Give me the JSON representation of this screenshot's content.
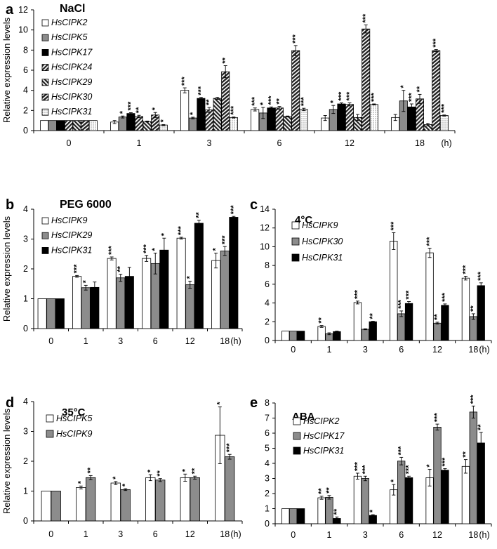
{
  "figure": {
    "ylabel": "Relative expression levels",
    "time_unit": "(h)"
  },
  "chart_data": [
    {
      "type": "bar",
      "panel": "a",
      "title": "NaCl",
      "categories": [
        "0",
        "1",
        "3",
        "6",
        "12",
        "18"
      ],
      "ylim": [
        0,
        12
      ],
      "yticks": [
        0,
        2,
        4,
        6,
        8,
        10,
        12
      ],
      "legend_position": "top-left",
      "series": [
        {
          "name": "HsCIPK2",
          "pattern": "white",
          "values": [
            1,
            0.85,
            4.0,
            2.1,
            1.25,
            1.3
          ],
          "errors": [
            0,
            0.15,
            0.25,
            0.15,
            0.25,
            0.3
          ],
          "sig": [
            "",
            "",
            "***",
            "***",
            "",
            ""
          ]
        },
        {
          "name": "HsCIPK5",
          "pattern": "gray",
          "values": [
            1,
            1.35,
            1.25,
            1.75,
            2.1,
            2.95
          ],
          "errors": [
            0,
            0.1,
            0.08,
            0.55,
            0.4,
            1.05
          ],
          "sig": [
            "",
            "*",
            "*",
            "*",
            "*",
            "*"
          ]
        },
        {
          "name": "HsCIPK17",
          "pattern": "black",
          "values": [
            1,
            1.7,
            3.2,
            2.25,
            2.65,
            2.35
          ],
          "errors": [
            0,
            0.08,
            0.1,
            0.1,
            0.1,
            0.3
          ],
          "sig": [
            "",
            "***",
            "***",
            "***",
            "***",
            "***"
          ]
        },
        {
          "name": "HsCIPK24",
          "pattern": "diag",
          "values": [
            1,
            1.4,
            2.05,
            2.25,
            2.6,
            3.15
          ],
          "errors": [
            0,
            0.12,
            0.25,
            0.15,
            0.15,
            0.45
          ],
          "sig": [
            "",
            "**",
            "**",
            "**",
            "***",
            "**"
          ]
        },
        {
          "name": "HsCIPK29",
          "pattern": "diagrev",
          "values": [
            1,
            0.9,
            3.2,
            1.4,
            1.3,
            0.6
          ],
          "errors": [
            0,
            0.05,
            0.1,
            0.05,
            0.3,
            0.12
          ],
          "sig": [
            "",
            "",
            "",
            "",
            "",
            ""
          ]
        },
        {
          "name": "HsCIPK30",
          "pattern": "hbars",
          "values": [
            1,
            1.55,
            5.85,
            7.95,
            10.1,
            7.95
          ],
          "errors": [
            0,
            0.25,
            0.6,
            0.5,
            0.4,
            0.1
          ],
          "sig": [
            "",
            "*",
            "**",
            "***",
            "***",
            "***"
          ]
        },
        {
          "name": "HsCIPK31",
          "pattern": "dots",
          "values": [
            1,
            0.55,
            1.3,
            2.1,
            2.6,
            1.5
          ],
          "errors": [
            0,
            0.05,
            0.05,
            0.12,
            0.05,
            0.05
          ],
          "sig": [
            "",
            "*",
            "***",
            "***",
            "***",
            "***"
          ]
        }
      ]
    },
    {
      "type": "bar",
      "panel": "b",
      "title": "PEG 6000",
      "categories": [
        "0",
        "1",
        "3",
        "6",
        "12",
        "18"
      ],
      "ylim": [
        0,
        4
      ],
      "yticks": [
        0,
        1,
        2,
        3,
        4
      ],
      "legend_position": "top-left",
      "series": [
        {
          "name": "HsCIPK9",
          "pattern": "white",
          "values": [
            1,
            1.75,
            2.35,
            2.35,
            3.03,
            2.28
          ],
          "errors": [
            0,
            0.03,
            0.05,
            0.1,
            0.03,
            0.25
          ],
          "sig": [
            "",
            "***",
            "***",
            "***",
            "***",
            "*"
          ]
        },
        {
          "name": "HsCIPK29",
          "pattern": "gray",
          "values": [
            1,
            1.37,
            1.7,
            2.18,
            1.47,
            2.6
          ],
          "errors": [
            0,
            0.08,
            0.12,
            0.35,
            0.12,
            0.15
          ],
          "sig": [
            "",
            "*",
            "**",
            "*",
            "*",
            "***"
          ]
        },
        {
          "name": "HsCIPK31",
          "pattern": "black",
          "values": [
            1,
            1.38,
            1.75,
            2.63,
            3.53,
            3.73
          ],
          "errors": [
            0,
            0.18,
            0.3,
            0.4,
            0.1,
            0.03
          ],
          "sig": [
            "",
            "",
            "",
            "*",
            "**",
            "***"
          ]
        }
      ]
    },
    {
      "type": "bar",
      "panel": "c",
      "title": "4°C",
      "categories": [
        "0",
        "1",
        "3",
        "6",
        "12",
        "18"
      ],
      "ylim": [
        0,
        14
      ],
      "yticks": [
        0,
        2,
        4,
        6,
        8,
        10,
        12,
        14
      ],
      "legend_position": "top-left",
      "series": [
        {
          "name": "HsCIPK9",
          "pattern": "white",
          "values": [
            1,
            1.5,
            4.05,
            10.6,
            9.35,
            6.65
          ],
          "errors": [
            0,
            0.1,
            0.15,
            0.9,
            0.5,
            0.2
          ],
          "sig": [
            "",
            "**",
            "***",
            "***",
            "***",
            "***"
          ]
        },
        {
          "name": "HsCIPK30",
          "pattern": "gray",
          "values": [
            1,
            0.72,
            1.2,
            2.85,
            1.85,
            2.55
          ],
          "errors": [
            0,
            0.1,
            0.05,
            0.3,
            0.1,
            0.3
          ],
          "sig": [
            "",
            "",
            "",
            "***",
            "**",
            "**"
          ]
        },
        {
          "name": "HsCIPK31",
          "pattern": "black",
          "values": [
            1,
            0.95,
            2.0,
            3.95,
            3.75,
            5.85
          ],
          "errors": [
            0,
            0.05,
            0.05,
            0.2,
            0.15,
            0.3
          ],
          "sig": [
            "",
            "",
            "**",
            "***",
            "***",
            "***"
          ]
        }
      ]
    },
    {
      "type": "bar",
      "panel": "d",
      "title": "35°C",
      "categories": [
        "0",
        "1",
        "3",
        "6",
        "12",
        "18"
      ],
      "ylim": [
        0,
        4
      ],
      "yticks": [
        0,
        1,
        2,
        3,
        4
      ],
      "legend_position": "top-left",
      "series": [
        {
          "name": "HsCIPK5",
          "pattern": "white",
          "values": [
            1,
            1.12,
            1.27,
            1.45,
            1.45,
            2.87
          ],
          "errors": [
            0,
            0.05,
            0.05,
            0.1,
            0.12,
            0.95
          ],
          "sig": [
            "",
            "*",
            "*",
            "*",
            "*",
            "*"
          ]
        },
        {
          "name": "HsCIPK9",
          "pattern": "gray",
          "values": [
            1,
            1.45,
            1.05,
            1.37,
            1.45,
            2.15
          ],
          "errors": [
            0,
            0.07,
            0.03,
            0.05,
            0.05,
            0.08
          ],
          "sig": [
            "",
            "**",
            "*",
            "**",
            "**",
            "***"
          ]
        }
      ]
    },
    {
      "type": "bar",
      "panel": "e",
      "title": "ABA",
      "categories": [
        "0",
        "1",
        "3",
        "6",
        "12",
        "18"
      ],
      "ylim": [
        0,
        8
      ],
      "yticks": [
        0,
        1,
        2,
        3,
        4,
        5,
        6,
        7,
        8
      ],
      "legend_position": "top-left",
      "series": [
        {
          "name": "HsCIPK2",
          "pattern": "white",
          "values": [
            1,
            1.72,
            3.15,
            2.25,
            3.05,
            3.8
          ],
          "errors": [
            0,
            0.1,
            0.2,
            0.35,
            0.55,
            0.45
          ],
          "sig": [
            "",
            "**",
            "***",
            "*",
            "*",
            "**"
          ]
        },
        {
          "name": "HsCIPK17",
          "pattern": "gray",
          "values": [
            1,
            1.75,
            3.0,
            4.15,
            6.4,
            7.4
          ],
          "errors": [
            0,
            0.12,
            0.15,
            0.25,
            0.2,
            0.4
          ],
          "sig": [
            "",
            "**",
            "***",
            "***",
            "***",
            "***"
          ]
        },
        {
          "name": "HsCIPK31",
          "pattern": "black",
          "values": [
            1,
            0.35,
            0.55,
            3.05,
            3.55,
            5.35
          ],
          "errors": [
            0,
            0.1,
            0.05,
            0.1,
            0.1,
            0.7
          ],
          "sig": [
            "",
            "**",
            "*",
            "***",
            "***",
            "**"
          ]
        }
      ]
    }
  ]
}
